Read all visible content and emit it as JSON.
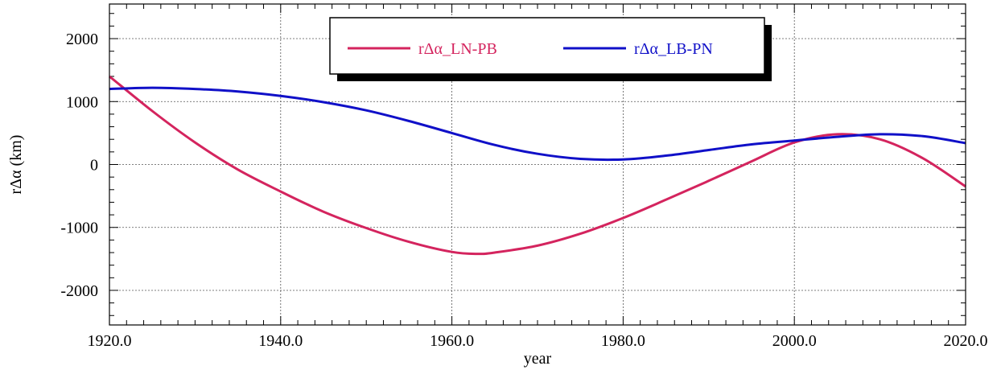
{
  "chart_data": {
    "type": "line",
    "title": "",
    "xlabel": "year",
    "ylabel": "rΔα (km)",
    "xlim": [
      1920,
      2020
    ],
    "ylim": [
      -2550,
      2550
    ],
    "x_ticks": [
      1920,
      1940,
      1960,
      1980,
      2000,
      2020
    ],
    "x_tick_labels": [
      "1920.0",
      "1940.0",
      "1960.0",
      "1980.0",
      "2000.0",
      "2020.0"
    ],
    "y_ticks": [
      -2000,
      -1000,
      0,
      1000,
      2000
    ],
    "y_tick_labels": [
      "-2000",
      "-1000",
      "0",
      "1000",
      "2000"
    ],
    "grid": true,
    "legend_position": "top-center",
    "series": [
      {
        "name": "rΔα_LN-PB",
        "color": "#d4245e",
        "x": [
          1920,
          1925,
          1930,
          1935,
          1940,
          1945,
          1950,
          1955,
          1960,
          1963,
          1965,
          1970,
          1975,
          1980,
          1985,
          1990,
          1995,
          2000,
          2005,
          2010,
          2015,
          2020
        ],
        "y": [
          1400,
          850,
          350,
          -80,
          -430,
          -750,
          -1010,
          -1230,
          -1390,
          -1420,
          -1400,
          -1290,
          -1100,
          -850,
          -560,
          -260,
          50,
          350,
          480,
          400,
          100,
          -350
        ]
      },
      {
        "name": "rΔα_LB-PN",
        "color": "#1010c8",
        "x": [
          1920,
          1925,
          1930,
          1935,
          1940,
          1945,
          1950,
          1955,
          1960,
          1965,
          1970,
          1975,
          1980,
          1985,
          1990,
          1995,
          2000,
          2005,
          2010,
          2015,
          2020
        ],
        "y": [
          1200,
          1220,
          1200,
          1160,
          1090,
          990,
          860,
          690,
          500,
          310,
          170,
          90,
          80,
          140,
          230,
          320,
          380,
          440,
          480,
          450,
          340
        ]
      }
    ]
  }
}
